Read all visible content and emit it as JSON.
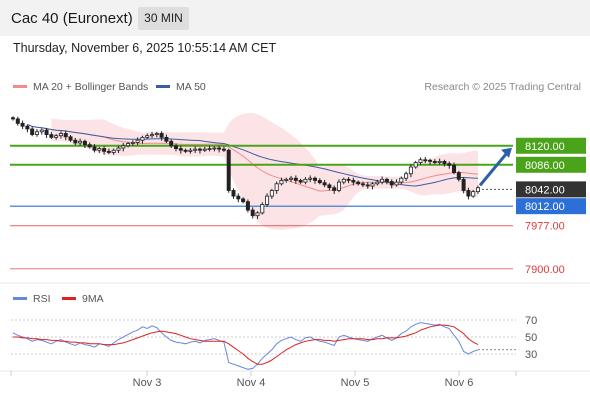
{
  "header": {
    "instrument": "Cac 40 (Euronext)",
    "timeframe": "30 MIN",
    "datetime": "Thursday, November 6, 2025 10:55:14 AM CET"
  },
  "copyright": "Research © 2025 Trading Central",
  "colors": {
    "bullish_level": "#4aa31a",
    "support_level": "#2c6fd6",
    "low_level": "#e43a3a",
    "current_price_bg": "#333333",
    "bollinger_fill": "#fadadd",
    "ma20": "#f08c8c",
    "ma50": "#3a5fa0",
    "candle": "#222222",
    "arrow": "#2d5fa8",
    "rsi": "#6688dd",
    "rsi_ma": "#dd2222"
  },
  "chart_data": [
    {
      "type": "candlestick",
      "title": "Cac 40 (Euronext)",
      "timeframe": "30 MIN",
      "legend": [
        {
          "name": "MA 20 + Bollinger Bands",
          "color": "#f08c8c"
        },
        {
          "name": "MA 50",
          "color": "#3a5fa0"
        }
      ],
      "x_ticks": [
        "Nov 3",
        "Nov 4",
        "Nov 5",
        "Nov 6"
      ],
      "y_range": [
        7880,
        8175
      ],
      "closes": [
        8168,
        8160,
        8155,
        8150,
        8140,
        8145,
        8148,
        8140,
        8135,
        8138,
        8142,
        8136,
        8130,
        8125,
        8128,
        8122,
        8118,
        8112,
        8115,
        8110,
        8108,
        8112,
        8116,
        8120,
        8124,
        8126,
        8130,
        8135,
        8138,
        8140,
        8142,
        8135,
        8128,
        8120,
        8115,
        8112,
        8110,
        8112,
        8114,
        8112,
        8114,
        8115,
        8116,
        8114,
        8112,
        8040,
        8030,
        8025,
        8020,
        8005,
        7995,
        8000,
        8015,
        8030,
        8040,
        8052,
        8058,
        8060,
        8062,
        8058,
        8055,
        8060,
        8062,
        8058,
        8054,
        8050,
        8045,
        8040,
        8055,
        8060,
        8058,
        8055,
        8052,
        8050,
        8048,
        8052,
        8055,
        8060,
        8056,
        8050,
        8055,
        8062,
        8070,
        8082,
        8090,
        8095,
        8094,
        8092,
        8090,
        8092,
        8088,
        8085,
        8072,
        8060,
        8040,
        8030,
        8038,
        8045
      ],
      "levels": [
        {
          "label": "8120.00",
          "value": 8120,
          "kind": "resistance"
        },
        {
          "label": "8086.00",
          "value": 8086,
          "kind": "resistance"
        },
        {
          "label": "8042.00",
          "value": 8042,
          "kind": "last"
        },
        {
          "label": "8012.00",
          "value": 8012,
          "kind": "pivot"
        },
        {
          "label": "7977.00",
          "value": 7977,
          "kind": "support"
        },
        {
          "label": "7900.00",
          "value": 7900,
          "kind": "support"
        }
      ],
      "projection": {
        "from": 8042,
        "to": 8120,
        "direction": "up"
      }
    },
    {
      "type": "line",
      "title": "RSI",
      "legend": [
        {
          "name": "RSI",
          "color": "#6688dd"
        },
        {
          "name": "9MA",
          "color": "#dd2222"
        }
      ],
      "y_ticks": [
        "70",
        "50",
        "30"
      ],
      "y_range": [
        15,
        85
      ],
      "rsi": [
        55,
        52,
        50,
        48,
        45,
        47,
        46,
        44,
        42,
        45,
        47,
        44,
        42,
        40,
        43,
        41,
        40,
        38,
        42,
        41,
        39,
        43,
        47,
        50,
        53,
        56,
        58,
        62,
        60,
        63,
        61,
        55,
        50,
        46,
        44,
        43,
        42,
        44,
        45,
        43,
        46,
        47,
        48,
        46,
        44,
        20,
        18,
        16,
        14,
        12,
        13,
        18,
        25,
        30,
        35,
        42,
        46,
        48,
        50,
        47,
        45,
        49,
        50,
        47,
        45,
        44,
        42,
        40,
        50,
        52,
        50,
        48,
        47,
        46,
        45,
        48,
        50,
        52,
        49,
        46,
        49,
        54,
        57,
        62,
        65,
        67,
        66,
        65,
        64,
        65,
        62,
        60,
        52,
        45,
        33,
        30,
        33,
        35
      ],
      "rsi_ma": [
        50,
        50,
        49,
        49,
        48,
        48,
        47,
        47,
        46,
        46,
        45,
        45,
        44,
        44,
        43,
        43,
        42,
        42,
        42,
        41,
        41,
        41,
        42,
        43,
        45,
        47,
        49,
        51,
        53,
        55,
        56,
        57,
        56,
        55,
        54,
        52,
        50,
        48,
        47,
        46,
        45,
        45,
        45,
        45,
        45,
        42,
        38,
        34,
        30,
        25,
        21,
        18,
        18,
        20,
        23,
        27,
        31,
        35,
        38,
        41,
        43,
        45,
        46,
        47,
        47,
        46,
        46,
        45,
        46,
        47,
        48,
        48,
        48,
        48,
        47,
        47,
        48,
        48,
        49,
        49,
        49,
        50,
        51,
        53,
        55,
        58,
        60,
        62,
        63,
        64,
        64,
        63,
        62,
        58,
        54,
        48,
        44,
        41
      ]
    }
  ]
}
